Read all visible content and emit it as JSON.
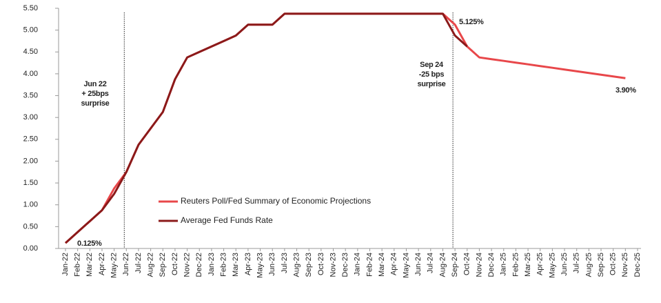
{
  "chart_data": {
    "type": "line",
    "categories": [
      "Jan-22",
      "Feb-22",
      "Mar-22",
      "Apr-22",
      "May-22",
      "Jun-22",
      "Jul-22",
      "Aug-22",
      "Sep-22",
      "Oct-22",
      "Nov-22",
      "Dec-22",
      "Jan-23",
      "Feb-23",
      "Mar-23",
      "Apr-23",
      "May-23",
      "Jun-23",
      "Jul-23",
      "Aug-23",
      "Sep-23",
      "Oct-23",
      "Nov-23",
      "Dec-23",
      "Jan-24",
      "Feb-24",
      "Mar-24",
      "Apr-24",
      "May-24",
      "Jun-24",
      "Jul-24",
      "Aug-24",
      "Sep-24",
      "Oct-24",
      "Nov-24",
      "Dec-24",
      "Jan-25",
      "Feb-25",
      "Mar-25",
      "Apr-25",
      "May-25",
      "Jun-25",
      "Jul-25",
      "Aug-25",
      "Sep-25",
      "Oct-25",
      "Nov-25",
      "Dec-25"
    ],
    "series": [
      {
        "name": "Reuters Poll/Fed Summary of Economic Projections",
        "color": "#e8474a",
        "values": [
          0.125,
          0.375,
          0.625,
          0.875,
          1.375,
          1.75,
          2.375,
          2.75,
          3.125,
          3.875,
          4.375,
          4.5,
          4.625,
          4.75,
          4.875,
          5.125,
          5.125,
          5.125,
          5.375,
          5.375,
          5.375,
          5.375,
          5.375,
          5.375,
          5.375,
          5.375,
          5.375,
          5.375,
          5.375,
          5.375,
          5.375,
          5.375,
          5.125,
          4.625,
          4.375,
          4.335,
          4.296,
          4.256,
          4.217,
          4.177,
          4.138,
          4.098,
          4.058,
          4.019,
          3.979,
          3.94,
          3.9,
          null
        ]
      },
      {
        "name": "Average Fed Funds Rate",
        "color": "#8b1a1a",
        "values": [
          0.125,
          0.375,
          0.625,
          0.875,
          1.25,
          1.75,
          2.375,
          2.75,
          3.125,
          3.875,
          4.375,
          4.5,
          4.625,
          4.75,
          4.875,
          5.125,
          5.125,
          5.125,
          5.375,
          5.375,
          5.375,
          5.375,
          5.375,
          5.375,
          5.375,
          5.375,
          5.375,
          5.375,
          5.375,
          5.375,
          5.375,
          5.375,
          4.875,
          4.625,
          null,
          null,
          null,
          null,
          null,
          null,
          null,
          null,
          null,
          null,
          null,
          null,
          null,
          null
        ]
      }
    ],
    "ylim": [
      0,
      5.5
    ],
    "yticks": [
      {
        "value": 0,
        "label": "0.00"
      },
      {
        "value": 0.5,
        "label": "0.50"
      },
      {
        "value": 1,
        "label": "1.00"
      },
      {
        "value": 1.5,
        "label": "1.50"
      },
      {
        "value": 2,
        "label": "2.00"
      },
      {
        "value": 2.5,
        "label": "2.50"
      },
      {
        "value": 3,
        "label": "3.00"
      },
      {
        "value": 3.5,
        "label": "3.50"
      },
      {
        "value": 4,
        "label": "4.00"
      },
      {
        "value": 4.5,
        "label": "4.50"
      },
      {
        "value": 5,
        "label": "5.00"
      },
      {
        "value": 5.5,
        "label": "5.50"
      }
    ],
    "annotations": [
      {
        "lines": [
          "Jun 22",
          "+ 25bps",
          "surprise"
        ]
      },
      {
        "lines": [
          "Sep 24",
          "-25 bps",
          "surprise"
        ]
      },
      {
        "lines": [
          "5.125%"
        ]
      },
      {
        "lines": [
          "3.90%"
        ]
      },
      {
        "lines": [
          "0.125%"
        ]
      }
    ]
  }
}
